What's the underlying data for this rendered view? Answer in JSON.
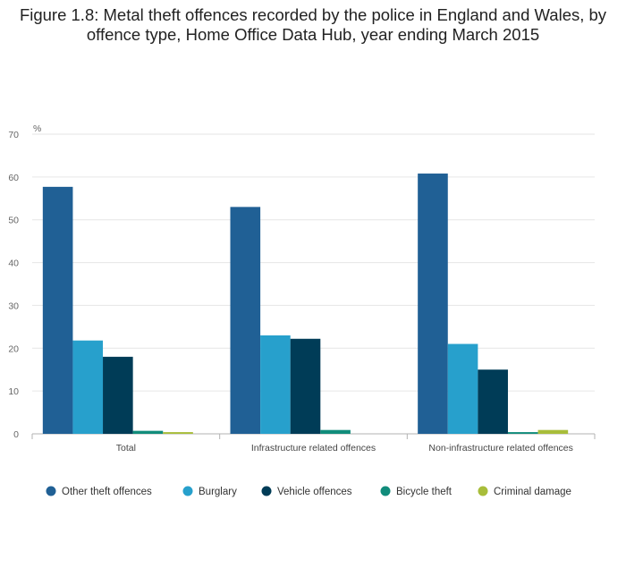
{
  "chart_data": {
    "type": "bar",
    "title": "Figure 1.8: Metal theft offences recorded by the police in England and Wales, by offence type, Home Office Data Hub, year ending March 2015",
    "ylabel": "%",
    "xlabel": "",
    "ylim": [
      0,
      70
    ],
    "yticks": [
      0,
      10,
      20,
      30,
      40,
      50,
      60,
      70
    ],
    "grid": true,
    "legend_position": "bottom",
    "categories": [
      "Total",
      "Infrastructure related offences",
      "Non-infrastructure related offences"
    ],
    "series": [
      {
        "name": "Other theft offences",
        "color": "#206095",
        "values": [
          57.7,
          53.0,
          60.8
        ]
      },
      {
        "name": "Burglary",
        "color": "#27A0CC",
        "values": [
          21.8,
          23.0,
          21.0
        ]
      },
      {
        "name": "Vehicle offences",
        "color": "#003C57",
        "values": [
          18.0,
          22.2,
          15.0
        ]
      },
      {
        "name": "Bicycle theft",
        "color": "#118C7B",
        "values": [
          0.7,
          0.9,
          0.4
        ]
      },
      {
        "name": "Criminal damage",
        "color": "#A8BD3A",
        "values": [
          0.4,
          0.0,
          0.9
        ]
      }
    ]
  }
}
